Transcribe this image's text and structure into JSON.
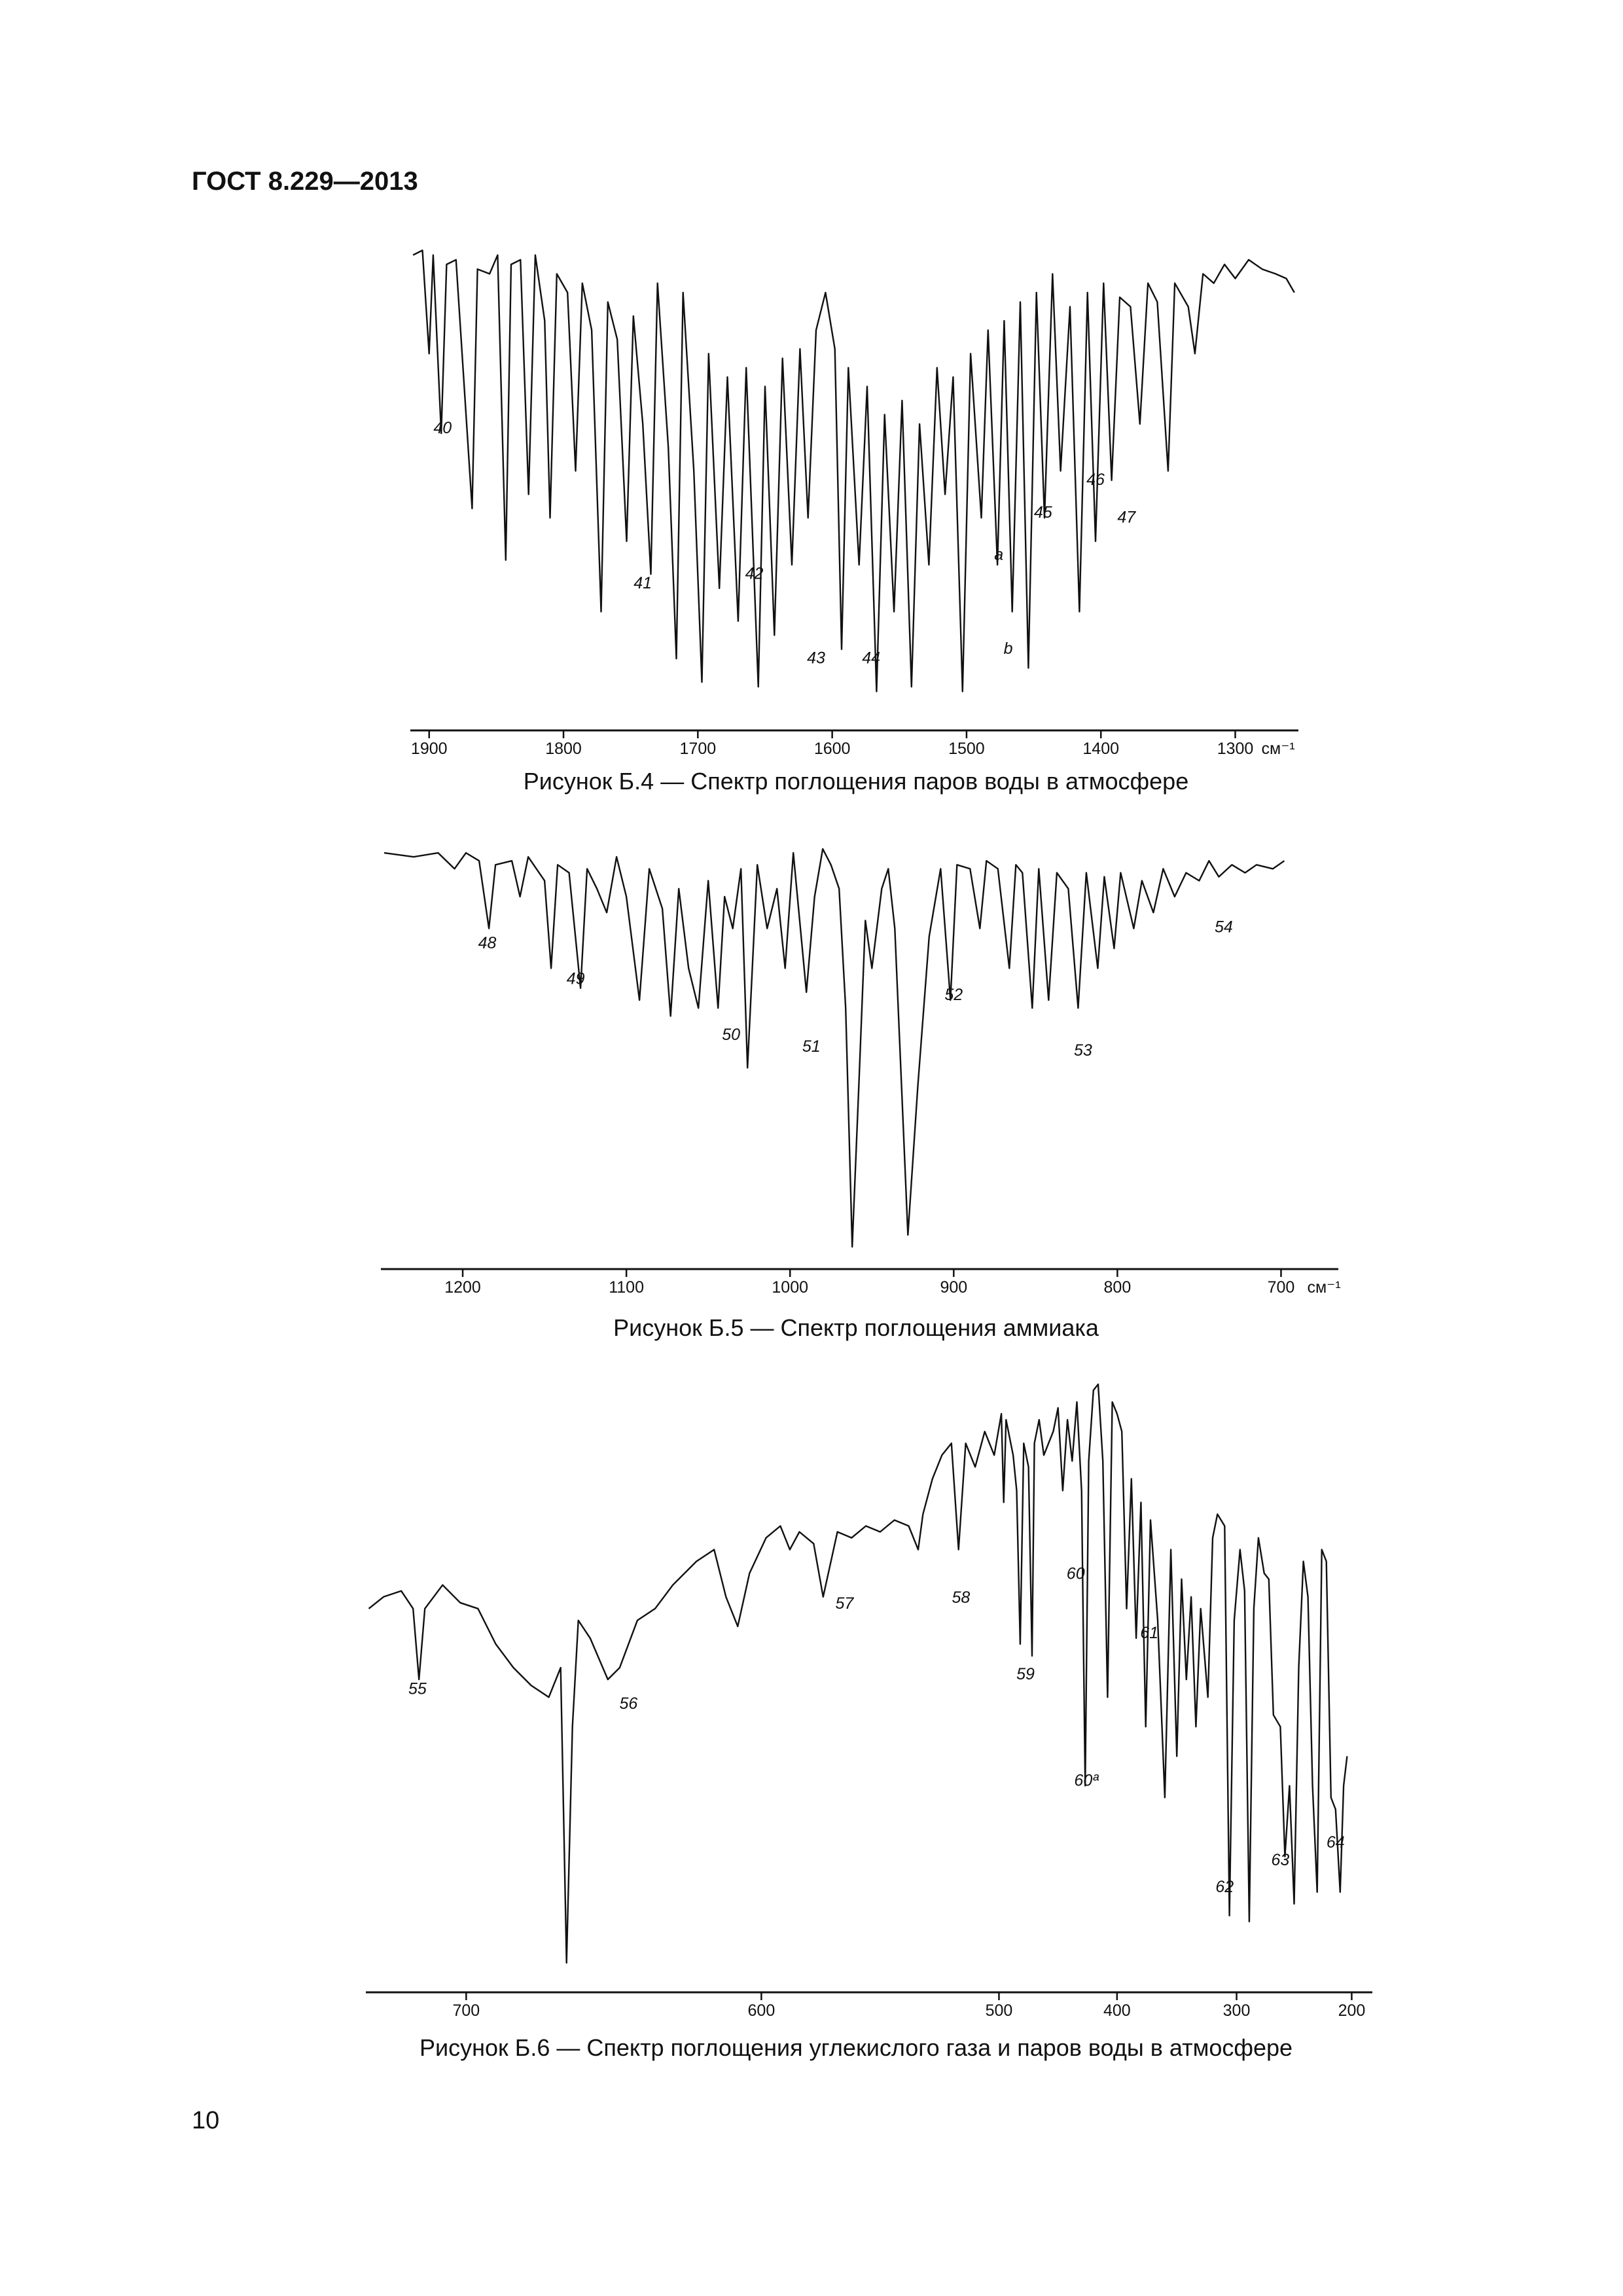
{
  "header": {
    "title": "ГОСТ 8.229—2013"
  },
  "page_number": "10",
  "chart_data": [
    {
      "type": "line",
      "title": "Рисунок Б.4 — Спектр поглощения паров воды в атмосфере",
      "x_label": "см⁻¹",
      "xscale": "linear",
      "color": "#111111",
      "xlim": [
        1914,
        1253
      ],
      "xticks": [
        1900,
        1800,
        1700,
        1600,
        1500,
        1400,
        1300
      ],
      "ylim": [
        0,
        100
      ],
      "x": [
        1912,
        1905,
        1900,
        1897,
        1891,
        1887,
        1880,
        1868,
        1864,
        1855,
        1849,
        1843,
        1839,
        1832,
        1826,
        1821,
        1814,
        1810,
        1805,
        1797,
        1791,
        1786,
        1779,
        1772,
        1767,
        1760,
        1753,
        1748,
        1741,
        1735,
        1730,
        1722,
        1716,
        1711,
        1703,
        1697,
        1692,
        1684,
        1678,
        1670,
        1664,
        1655,
        1650,
        1643,
        1637,
        1630,
        1624,
        1618,
        1612,
        1605,
        1598,
        1593,
        1588,
        1580,
        1574,
        1567,
        1561,
        1554,
        1548,
        1541,
        1535,
        1528,
        1522,
        1516,
        1510,
        1503,
        1497,
        1489,
        1484,
        1477,
        1472,
        1466,
        1460,
        1454,
        1448,
        1442,
        1436,
        1430,
        1423,
        1416,
        1410,
        1404,
        1398,
        1392,
        1386,
        1378,
        1371,
        1365,
        1358,
        1350,
        1345,
        1335,
        1330,
        1324,
        1316,
        1308,
        1300,
        1290,
        1280,
        1270,
        1262,
        1256
      ],
      "values": [
        96,
        97,
        75,
        96,
        58,
        94,
        95,
        42,
        93,
        92,
        96,
        31,
        94,
        95,
        45,
        96,
        82,
        40,
        92,
        88,
        50,
        90,
        80,
        20,
        86,
        78,
        35,
        83,
        60,
        28,
        90,
        55,
        10,
        88,
        50,
        5,
        75,
        25,
        70,
        18,
        72,
        4,
        68,
        15,
        74,
        30,
        76,
        40,
        80,
        88,
        76,
        12,
        72,
        30,
        68,
        3,
        62,
        20,
        65,
        4,
        60,
        30,
        72,
        45,
        70,
        3,
        75,
        40,
        80,
        30,
        82,
        20,
        86,
        8,
        88,
        40,
        92,
        50,
        85,
        20,
        88,
        35,
        90,
        48,
        87,
        85,
        60,
        90,
        86,
        50,
        90,
        85,
        75,
        92,
        90,
        94,
        91,
        95,
        93,
        92,
        91,
        88
      ],
      "annotations": [
        {
          "text": "40",
          "x": 1890,
          "y": 58
        },
        {
          "text": "41",
          "x": 1741,
          "y": 25
        },
        {
          "text": "42",
          "x": 1658,
          "y": 27
        },
        {
          "text": "43",
          "x": 1612,
          "y": 9
        },
        {
          "text": "44",
          "x": 1571,
          "y": 9
        },
        {
          "text": "a",
          "x": 1476,
          "y": 31
        },
        {
          "text": "b",
          "x": 1469,
          "y": 11
        },
        {
          "text": "45",
          "x": 1443,
          "y": 40
        },
        {
          "text": "46",
          "x": 1404,
          "y": 47
        },
        {
          "text": "47",
          "x": 1381,
          "y": 39
        }
      ]
    },
    {
      "type": "line",
      "title": "Рисунок Б.5 — Спектр поглощения аммиака",
      "x_label": "см⁻¹",
      "xscale": "linear",
      "color": "#111111",
      "xlim": [
        1250,
        665
      ],
      "xticks": [
        1200,
        1100,
        1000,
        900,
        800,
        700
      ],
      "ylim": [
        0,
        100
      ],
      "x": [
        1248,
        1230,
        1215,
        1205,
        1198,
        1190,
        1184,
        1180,
        1170,
        1165,
        1160,
        1150,
        1146,
        1142,
        1135,
        1128,
        1124,
        1118,
        1112,
        1106,
        1100,
        1092,
        1086,
        1078,
        1073,
        1068,
        1062,
        1056,
        1050,
        1044,
        1040,
        1035,
        1030,
        1026,
        1020,
        1014,
        1008,
        1003,
        998,
        990,
        985,
        980,
        975,
        970,
        966,
        962,
        958,
        954,
        950,
        944,
        940,
        936,
        928,
        922,
        915,
        908,
        902,
        898,
        890,
        884,
        880,
        873,
        866,
        862,
        858,
        852,
        848,
        842,
        837,
        830,
        824,
        819,
        812,
        808,
        802,
        798,
        790,
        785,
        778,
        772,
        765,
        758,
        750,
        744,
        738,
        730,
        722,
        715,
        705,
        698
      ],
      "values": [
        99,
        98,
        99,
        95,
        99,
        97,
        80,
        96,
        97,
        88,
        98,
        92,
        70,
        96,
        94,
        65,
        95,
        90,
        84,
        98,
        88,
        62,
        95,
        85,
        58,
        90,
        70,
        60,
        92,
        60,
        88,
        80,
        95,
        45,
        96,
        80,
        90,
        70,
        99,
        64,
        88,
        100,
        96,
        90,
        60,
        0,
        40,
        82,
        70,
        90,
        95,
        80,
        3,
        40,
        78,
        95,
        62,
        96,
        95,
        80,
        97,
        95,
        70,
        96,
        94,
        60,
        95,
        62,
        94,
        90,
        60,
        94,
        70,
        93,
        75,
        94,
        80,
        92,
        84,
        95,
        88,
        94,
        92,
        97,
        93,
        96,
        94,
        96,
        95,
        97
      ],
      "annotations": [
        {
          "text": "48",
          "x": 1185,
          "y": 75
        },
        {
          "text": "49",
          "x": 1131,
          "y": 66
        },
        {
          "text": "50",
          "x": 1036,
          "y": 52
        },
        {
          "text": "51",
          "x": 987,
          "y": 49
        },
        {
          "text": "52",
          "x": 900,
          "y": 62
        },
        {
          "text": "53",
          "x": 821,
          "y": 48
        },
        {
          "text": "54",
          "x": 735,
          "y": 79
        }
      ]
    },
    {
      "type": "line",
      "title": "Рисунок Б.6 — Спектр поглощения углекислого газа и паров воды в атмосфере",
      "xscale": "piecewise",
      "color": "#111111",
      "xlim": [
        734,
        182
      ],
      "xticks": [
        700,
        600,
        500,
        400,
        300,
        200
      ],
      "ylim": [
        0,
        100
      ],
      "x": [
        733,
        728,
        722,
        718,
        716,
        714,
        708,
        702,
        696,
        690,
        684,
        678,
        672,
        668,
        666,
        664,
        662,
        658,
        652,
        648,
        642,
        636,
        630,
        622,
        616,
        612,
        608,
        604,
        598,
        592,
        588,
        584,
        578,
        574,
        568,
        562,
        556,
        550,
        544,
        538,
        534,
        532,
        528,
        524,
        520,
        517,
        514,
        510,
        506,
        502,
        498,
        496,
        494,
        488,
        485,
        482,
        479,
        475,
        472,
        470,
        466,
        462,
        458,
        454,
        450,
        446,
        442,
        438,
        434,
        430,
        427,
        424,
        420,
        416,
        412,
        408,
        404,
        400,
        396,
        392,
        388,
        384,
        380,
        376,
        372,
        366,
        360,
        355,
        350,
        346,
        342,
        338,
        334,
        330,
        324,
        320,
        316,
        310,
        306,
        302,
        297,
        293,
        289,
        285,
        281,
        276,
        272,
        268,
        262,
        258,
        254,
        250,
        246,
        242,
        238,
        234,
        230,
        226,
        222,
        218,
        214,
        210,
        207,
        204
      ],
      "values": [
        60,
        62,
        63,
        60,
        48,
        60,
        64,
        61,
        60,
        54,
        50,
        47,
        45,
        50,
        0,
        40,
        58,
        55,
        48,
        50,
        58,
        60,
        64,
        68,
        70,
        62,
        57,
        66,
        72,
        74,
        70,
        73,
        71,
        62,
        73,
        72,
        74,
        73,
        75,
        74,
        70,
        76,
        82,
        86,
        88,
        70,
        88,
        84,
        90,
        86,
        93,
        78,
        92,
        86,
        80,
        54,
        88,
        84,
        52,
        88,
        92,
        86,
        88,
        90,
        94,
        80,
        92,
        85,
        95,
        80,
        30,
        85,
        97,
        98,
        85,
        45,
        95,
        93,
        90,
        60,
        82,
        55,
        78,
        40,
        75,
        58,
        28,
        70,
        35,
        65,
        48,
        62,
        40,
        60,
        45,
        72,
        76,
        74,
        8,
        58,
        70,
        63,
        7,
        60,
        72,
        66,
        65,
        42,
        40,
        18,
        30,
        10,
        50,
        68,
        62,
        30,
        12,
        70,
        68,
        28,
        26,
        12,
        30,
        35
      ],
      "annotations": [
        {
          "text": "55",
          "x": 716.5,
          "y": 45.5
        },
        {
          "text": "56",
          "x": 645,
          "y": 43
        },
        {
          "text": "57",
          "x": 565,
          "y": 60
        },
        {
          "text": "58",
          "x": 516,
          "y": 61
        },
        {
          "text": "59",
          "x": 477.5,
          "y": 48
        },
        {
          "text": "60",
          "x": 435,
          "y": 65
        },
        {
          "text": "60ª",
          "x": 426,
          "y": 30
        },
        {
          "text": "61",
          "x": 373,
          "y": 55
        },
        {
          "text": "62",
          "x": 310,
          "y": 12
        },
        {
          "text": "63",
          "x": 262,
          "y": 16.5
        },
        {
          "text": "64",
          "x": 214,
          "y": 19.5
        }
      ]
    }
  ]
}
